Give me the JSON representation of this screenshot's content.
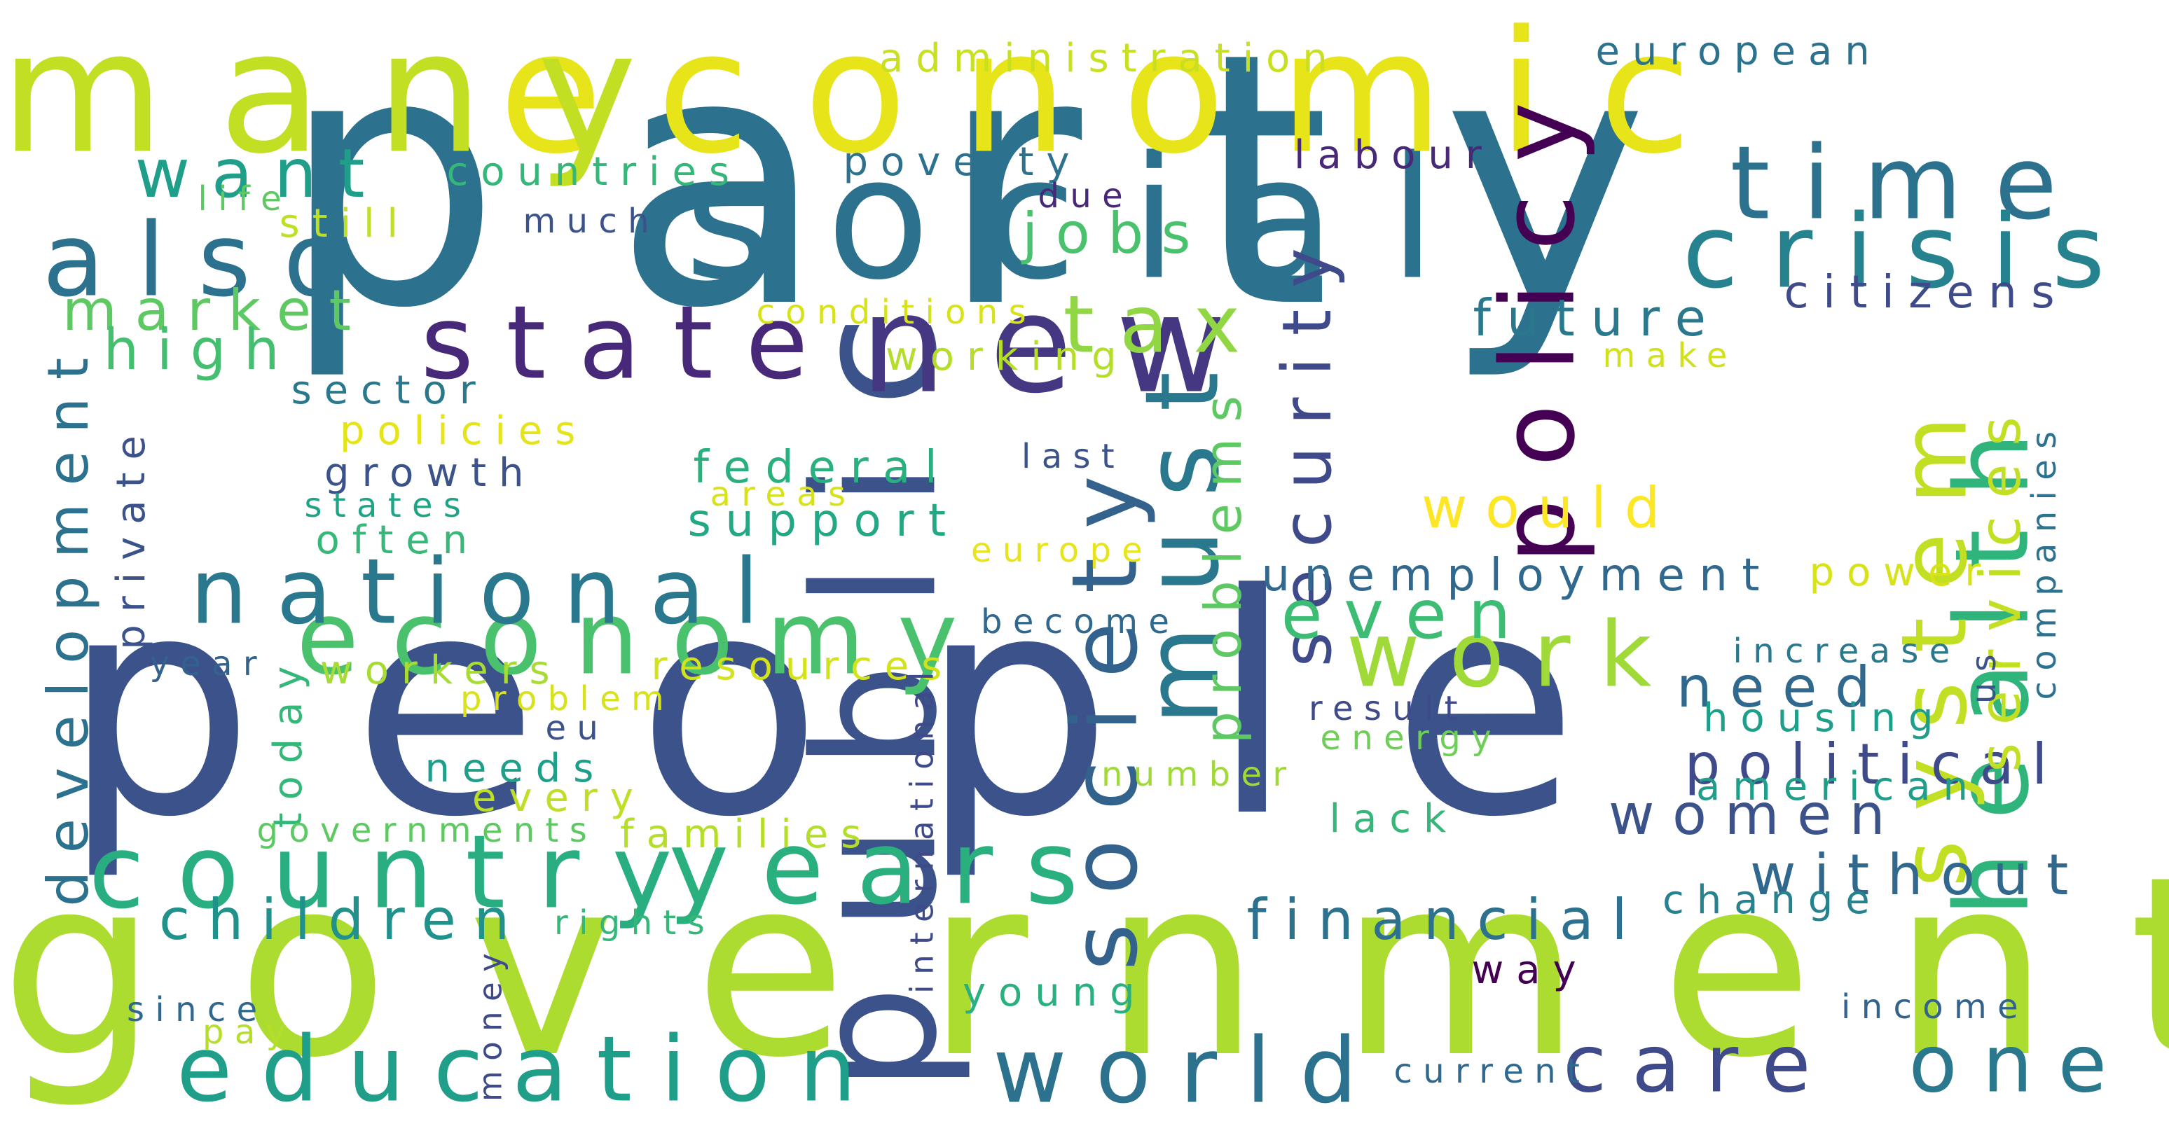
{
  "words": [
    {
      "id": "party",
      "text": "party",
      "color": "#2c728e"
    },
    {
      "id": "people",
      "text": "people",
      "color": "#3b528b"
    },
    {
      "id": "government",
      "text": "government",
      "color": "#addc30"
    },
    {
      "id": "social",
      "text": "social",
      "color": "#2c728e"
    },
    {
      "id": "economic",
      "text": "economic",
      "color": "#e7e419"
    },
    {
      "id": "many",
      "text": "many",
      "color": "#c2df23"
    },
    {
      "id": "public",
      "text": "public",
      "color": "#3b528b"
    },
    {
      "id": "years",
      "text": "years",
      "color": "#2ab07f"
    },
    {
      "id": "new",
      "text": "new",
      "color": "#453781"
    },
    {
      "id": "country",
      "text": "country",
      "color": "#28ae80"
    },
    {
      "id": "also",
      "text": "also",
      "color": "#2c728e"
    },
    {
      "id": "state",
      "text": "state",
      "color": "#482878"
    },
    {
      "id": "health",
      "text": "health",
      "color": "#2fb47c"
    },
    {
      "id": "time",
      "text": "time",
      "color": "#2c728e"
    },
    {
      "id": "crisis",
      "text": "crisis",
      "color": "#26828e"
    },
    {
      "id": "policy",
      "text": "policy",
      "color": "#440154"
    },
    {
      "id": "economy",
      "text": "economy",
      "color": "#4ac16d"
    },
    {
      "id": "education",
      "text": "education",
      "color": "#1f9e89"
    },
    {
      "id": "system",
      "text": "system",
      "color": "#c2df23"
    },
    {
      "id": "work",
      "text": "work",
      "color": "#a0da39"
    },
    {
      "id": "must",
      "text": "must",
      "color": "#2a788e"
    },
    {
      "id": "society",
      "text": "society",
      "color": "#33638d"
    },
    {
      "id": "national",
      "text": "national",
      "color": "#2a788e"
    },
    {
      "id": "world",
      "text": "world",
      "color": "#2c728e"
    },
    {
      "id": "care",
      "text": "care",
      "color": "#3e4a89"
    },
    {
      "id": "one",
      "text": "one",
      "color": "#2a788e"
    },
    {
      "id": "tax",
      "text": "tax",
      "color": "#90d743"
    },
    {
      "id": "want",
      "text": "want",
      "color": "#1f9e89"
    },
    {
      "id": "security",
      "text": "security",
      "color": "#3e4a89"
    },
    {
      "id": "would",
      "text": "would",
      "color": "#fde725"
    },
    {
      "id": "even",
      "text": "even",
      "color": "#3dbc74"
    },
    {
      "id": "problems",
      "text": "problems",
      "color": "#5ec962"
    },
    {
      "id": "political",
      "text": "political",
      "color": "#3e4a89"
    },
    {
      "id": "children",
      "text": "children",
      "color": "#21918c"
    },
    {
      "id": "development",
      "text": "development",
      "color": "#2c728e"
    },
    {
      "id": "services",
      "text": "services",
      "color": "#c2df23"
    },
    {
      "id": "jobs",
      "text": "jobs",
      "color": "#4ac16d"
    },
    {
      "id": "financial",
      "text": "financial",
      "color": "#2c728e"
    },
    {
      "id": "market",
      "text": "market",
      "color": "#5ec962"
    },
    {
      "id": "need",
      "text": "need",
      "color": "#31688e"
    },
    {
      "id": "women",
      "text": "women",
      "color": "#3b528b"
    },
    {
      "id": "without",
      "text": "without",
      "color": "#31688e"
    },
    {
      "id": "high",
      "text": "high",
      "color": "#44bf70"
    },
    {
      "id": "citizens",
      "text": "citizens",
      "color": "#3e4a89"
    },
    {
      "id": "future",
      "text": "future",
      "color": "#2a788e"
    },
    {
      "id": "unemployment",
      "text": "unemployment",
      "color": "#31688e"
    },
    {
      "id": "administration",
      "text": "administration",
      "color": "#c8e020"
    },
    {
      "id": "european",
      "text": "european",
      "color": "#2c728e"
    },
    {
      "id": "countries",
      "text": "countries",
      "color": "#35b779"
    },
    {
      "id": "poverty",
      "text": "poverty",
      "color": "#2c728e"
    },
    {
      "id": "labour",
      "text": "labour",
      "color": "#482878"
    },
    {
      "id": "life",
      "text": "life",
      "color": "#5ec962"
    },
    {
      "id": "still",
      "text": "still",
      "color": "#bddf26"
    },
    {
      "id": "much",
      "text": "much",
      "color": "#3b528b"
    },
    {
      "id": "due",
      "text": "due",
      "color": "#482878"
    },
    {
      "id": "conditions",
      "text": "conditions",
      "color": "#d8e219"
    },
    {
      "id": "working",
      "text": "working",
      "color": "#b5de2b"
    },
    {
      "id": "sector",
      "text": "sector",
      "color": "#2a788e"
    },
    {
      "id": "policies",
      "text": "policies",
      "color": "#e5e419"
    },
    {
      "id": "growth",
      "text": "growth",
      "color": "#3b528b"
    },
    {
      "id": "federal",
      "text": "federal",
      "color": "#2ab07f"
    },
    {
      "id": "last",
      "text": "last",
      "color": "#3b528b"
    },
    {
      "id": "states",
      "text": "states",
      "color": "#20a486"
    },
    {
      "id": "areas",
      "text": "areas",
      "color": "#d8e219"
    },
    {
      "id": "support",
      "text": "support",
      "color": "#22a884"
    },
    {
      "id": "often",
      "text": "often",
      "color": "#37b878"
    },
    {
      "id": "europe",
      "text": "europe",
      "color": "#e7e419"
    },
    {
      "id": "private",
      "text": "private",
      "color": "#3b528b"
    },
    {
      "id": "make",
      "text": "make",
      "color": "#d0e11c"
    },
    {
      "id": "power",
      "text": "power",
      "color": "#d8e219"
    },
    {
      "id": "companies",
      "text": "companies",
      "color": "#2c728e"
    },
    {
      "id": "increase",
      "text": "increase",
      "color": "#2a788e"
    },
    {
      "id": "become",
      "text": "become",
      "color": "#31688e"
    },
    {
      "id": "year",
      "text": "year",
      "color": "#33638d"
    },
    {
      "id": "today",
      "text": "today",
      "color": "#35b779"
    },
    {
      "id": "workers",
      "text": "workers",
      "color": "#a8db34"
    },
    {
      "id": "resources",
      "text": "resources",
      "color": "#d2e21b"
    },
    {
      "id": "problem",
      "text": "problem",
      "color": "#d8e219"
    },
    {
      "id": "eu",
      "text": "eu",
      "color": "#3b528b"
    },
    {
      "id": "international",
      "text": "international",
      "color": "#3e4a89"
    },
    {
      "id": "result",
      "text": "result",
      "color": "#3e4a89"
    },
    {
      "id": "energy",
      "text": "energy",
      "color": "#6ece58"
    },
    {
      "id": "housing",
      "text": "housing",
      "color": "#1f9e89"
    },
    {
      "id": "us",
      "text": "us",
      "color": "#3b528b"
    },
    {
      "id": "needs",
      "text": "needs",
      "color": "#1f9e89"
    },
    {
      "id": "every",
      "text": "every",
      "color": "#bddf26"
    },
    {
      "id": "number",
      "text": "number",
      "color": "#a0da39"
    },
    {
      "id": "american",
      "text": "american",
      "color": "#1f9e89"
    },
    {
      "id": "governments",
      "text": "governments",
      "color": "#5ec962"
    },
    {
      "id": "families",
      "text": "families",
      "color": "#b5de2b"
    },
    {
      "id": "lack",
      "text": "lack",
      "color": "#35b779"
    },
    {
      "id": "rights",
      "text": "rights",
      "color": "#35b779"
    },
    {
      "id": "change",
      "text": "change",
      "color": "#26828e"
    },
    {
      "id": "money",
      "text": "money",
      "color": "#3e4a89"
    },
    {
      "id": "way",
      "text": "way",
      "color": "#440154"
    },
    {
      "id": "since",
      "text": "since",
      "color": "#31688e"
    },
    {
      "id": "pay",
      "text": "pay",
      "color": "#b5de2b"
    },
    {
      "id": "young",
      "text": "young",
      "color": "#2ab07f"
    },
    {
      "id": "income",
      "text": "income",
      "color": "#33638d"
    },
    {
      "id": "current",
      "text": "current",
      "color": "#31688e"
    }
  ]
}
